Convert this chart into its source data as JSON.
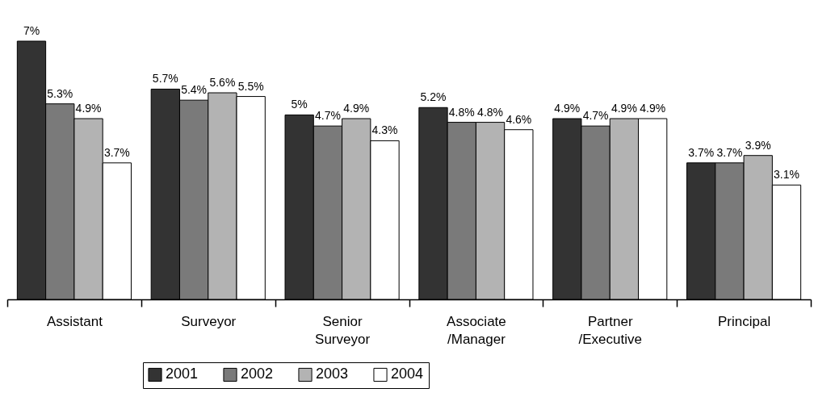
{
  "chart_data": {
    "type": "bar",
    "categories": [
      "Assistant",
      "Surveyor",
      "Senior\nSurveyor",
      "Associate\n/Manager",
      "Partner\n/Executive",
      "Principal"
    ],
    "series": [
      {
        "name": "2001",
        "color": "#333333",
        "values": [
          7,
          5.7,
          5,
          5.2,
          4.9,
          3.7
        ],
        "value_labels": [
          "7%",
          "5.7%",
          "5%",
          "5.2%",
          "4.9%",
          "3.7%"
        ]
      },
      {
        "name": "2002",
        "color": "#7a7a7a",
        "values": [
          5.3,
          5.4,
          4.7,
          4.8,
          4.7,
          3.7
        ],
        "value_labels": [
          "5.3%",
          "5.4%",
          "4.7%",
          "4.8%",
          "4.7%",
          "3.7%"
        ]
      },
      {
        "name": "2003",
        "color": "#b3b3b3",
        "values": [
          4.9,
          5.6,
          4.9,
          4.8,
          4.9,
          3.9
        ],
        "value_labels": [
          "4.9%",
          "5.6%",
          "4.9%",
          "4.8%",
          "4.9%",
          "3.9%"
        ]
      },
      {
        "name": "2004",
        "color": "#ffffff",
        "values": [
          3.7,
          5.5,
          4.3,
          4.6,
          4.9,
          3.1
        ],
        "value_labels": [
          "3.7%",
          "5.5%",
          "4.3%",
          "4.6%",
          "4.9%",
          "3.1%"
        ]
      }
    ],
    "legend": "bottom"
  }
}
